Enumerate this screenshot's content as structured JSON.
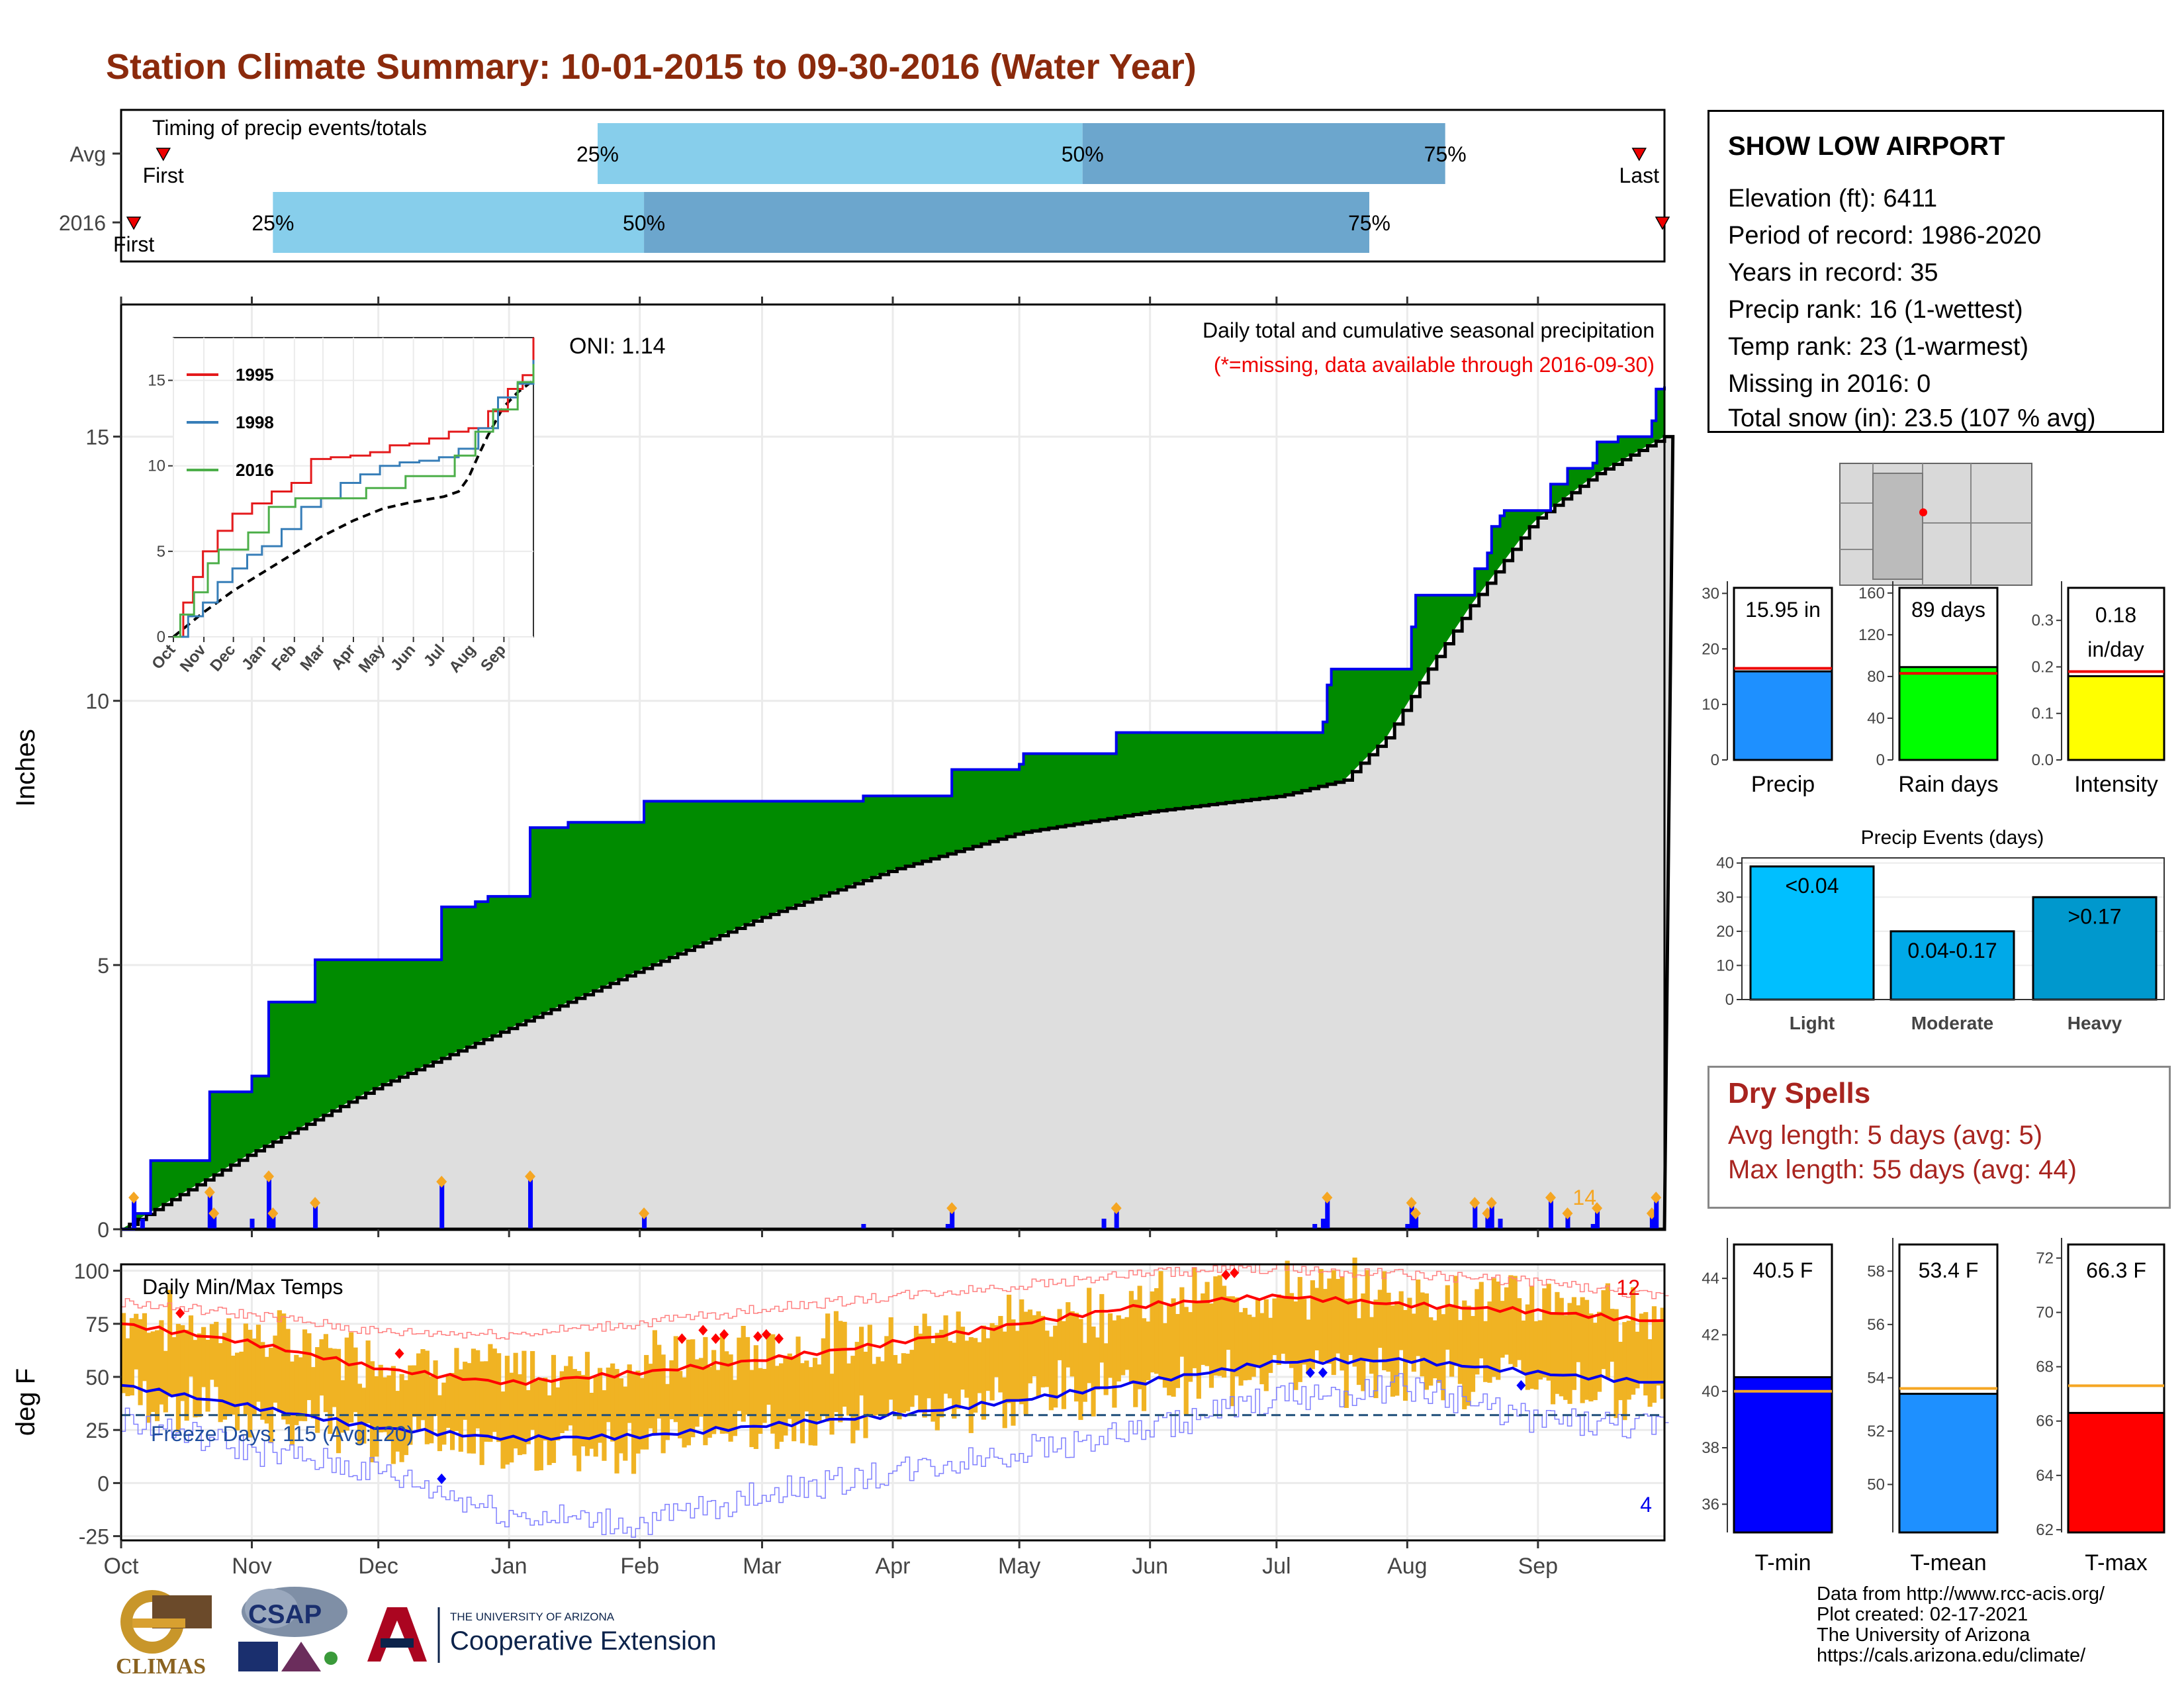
{
  "title": "Station Climate Summary: 10-01-2015 to 09-30-2016 (Water Year)",
  "station_info": {
    "name": "SHOW LOW AIRPORT",
    "lines": [
      "Elevation (ft): 6411",
      "Period of record: 1986-2020",
      "Years in record: 35",
      "Precip rank: 16 (1-wettest)",
      "Temp rank: 23 (1-warmest)",
      "Missing in 2016: 0",
      "Total snow (in): 23.5 (107 % avg)"
    ]
  },
  "dry_spells": {
    "title": "Dry Spells",
    "avg_length": "Avg length: 5 days (avg: 5)",
    "max_length": "Max length: 55 days (avg: 44)"
  },
  "credits": [
    "Data from http://www.rcc-acis.org/",
    "Plot created: 02-17-2021",
    "The University of Arizona",
    "https://cals.arizona.edu/climate/"
  ],
  "logos": {
    "climas": "CLIMAS",
    "csap": "CSAP",
    "ua_small": "THE UNIVERSITY OF ARIZONA",
    "ua_big": "Cooperative Extension"
  },
  "colors": {
    "title": "#8b2a0c",
    "green": "#008b00",
    "blue_line": "#0000ee",
    "grey_fill": "#dedede",
    "light_blue": "#87ceeb",
    "mid_blue": "#6ca6cd",
    "orange": "#f5a623",
    "red": "#ff0000"
  },
  "chart_data": [
    {
      "id": "timing",
      "type": "bar",
      "title": "Timing of precip events/totals",
      "rows": [
        {
          "label": "Avg",
          "first": "First",
          "last": "Last",
          "p25": "25%",
          "p50": "50%",
          "p75": "75%",
          "first_day": 10,
          "last_day": 360,
          "p25_day": 113,
          "p50_day": 228,
          "p75_day": 314
        },
        {
          "label": "2016",
          "first": "First",
          "last": "Last",
          "p25": "25%",
          "p50": "50%",
          "p75": "75%",
          "first_day": 3,
          "last_day": 367,
          "p25_day": 36,
          "p50_day": 124,
          "p75_day": 296
        }
      ]
    },
    {
      "id": "cumulative",
      "type": "area",
      "ylabel": "Inches",
      "yticks": [
        0,
        5,
        10,
        15
      ],
      "ylim": [
        0,
        17.5
      ],
      "annotation_title": "Daily total and cumulative seasonal precipitation",
      "annotation_missing": "(*=missing, data available through 2016-09-30)",
      "oni": "ONI: 1.14",
      "count_label": "14",
      "observed_steps": [
        [
          0,
          0
        ],
        [
          3,
          0.3
        ],
        [
          7,
          1.3
        ],
        [
          20,
          1.3
        ],
        [
          21,
          2.6
        ],
        [
          30,
          2.6
        ],
        [
          31,
          2.9
        ],
        [
          34,
          2.9
        ],
        [
          35,
          4.3
        ],
        [
          40,
          4.3
        ],
        [
          46,
          5.1
        ],
        [
          75,
          5.1
        ],
        [
          76,
          6.1
        ],
        [
          84,
          6.2
        ],
        [
          87,
          6.3
        ],
        [
          96,
          6.3
        ],
        [
          97,
          7.6
        ],
        [
          106,
          7.7
        ],
        [
          120,
          7.7
        ],
        [
          124,
          8.1
        ],
        [
          175,
          8.1
        ],
        [
          176,
          8.2
        ],
        [
          196,
          8.2
        ],
        [
          197,
          8.7
        ],
        [
          213,
          8.8
        ],
        [
          214,
          9.0
        ],
        [
          235,
          9.0
        ],
        [
          236,
          9.4
        ],
        [
          283,
          9.4
        ],
        [
          285,
          9.6
        ],
        [
          286,
          10.3
        ],
        [
          287,
          10.6
        ],
        [
          305,
          10.6
        ],
        [
          306,
          11.4
        ],
        [
          307,
          12.0
        ],
        [
          320,
          12.0
        ],
        [
          321,
          12.5
        ],
        [
          324,
          12.8
        ],
        [
          325,
          13.3
        ],
        [
          327,
          13.5
        ],
        [
          328,
          13.6
        ],
        [
          338,
          13.6
        ],
        [
          339,
          14.1
        ],
        [
          342,
          14.1
        ],
        [
          343,
          14.4
        ],
        [
          349,
          14.5
        ],
        [
          350,
          14.9
        ],
        [
          355,
          15.0
        ],
        [
          361,
          15.0
        ],
        [
          362,
          15.0
        ],
        [
          363,
          15.3
        ],
        [
          364,
          15.9
        ],
        [
          366,
          15.95
        ]
      ],
      "average_curve": [
        [
          0,
          0
        ],
        [
          30,
          1.4
        ],
        [
          61,
          2.7
        ],
        [
          92,
          3.8
        ],
        [
          123,
          4.9
        ],
        [
          152,
          5.9
        ],
        [
          183,
          6.8
        ],
        [
          213,
          7.5
        ],
        [
          244,
          7.9
        ],
        [
          275,
          8.2
        ],
        [
          290,
          8.5
        ],
        [
          300,
          9.3
        ],
        [
          310,
          10.6
        ],
        [
          320,
          11.8
        ],
        [
          335,
          13.4
        ],
        [
          350,
          14.3
        ],
        [
          366,
          15.0
        ]
      ],
      "daily_bars": [
        [
          3,
          0.6
        ],
        [
          5,
          0.2
        ],
        [
          21,
          0.7
        ],
        [
          22,
          0.3
        ],
        [
          31,
          0.2
        ],
        [
          35,
          1.0
        ],
        [
          36,
          0.3
        ],
        [
          46,
          0.5
        ],
        [
          76,
          0.9
        ],
        [
          97,
          1.0
        ],
        [
          124,
          0.3
        ],
        [
          176,
          0.1
        ],
        [
          196,
          0.1
        ],
        [
          197,
          0.4
        ],
        [
          233,
          0.2
        ],
        [
          236,
          0.4
        ],
        [
          283,
          0.1
        ],
        [
          285,
          0.2
        ],
        [
          286,
          0.6
        ],
        [
          305,
          0.1
        ],
        [
          306,
          0.5
        ],
        [
          307,
          0.3
        ],
        [
          321,
          0.5
        ],
        [
          324,
          0.3
        ],
        [
          325,
          0.5
        ],
        [
          327,
          0.2
        ],
        [
          339,
          0.6
        ],
        [
          343,
          0.3
        ],
        [
          349,
          0.1
        ],
        [
          350,
          0.4
        ],
        [
          363,
          0.3
        ],
        [
          364,
          0.6
        ]
      ],
      "x_ticks": [
        "Oct",
        "Nov",
        "Dec",
        "Jan",
        "Feb",
        "Mar",
        "Apr",
        "May",
        "Jun",
        "Jul",
        "Aug",
        "Sep"
      ]
    },
    {
      "id": "inset",
      "type": "line",
      "yticks": [
        0,
        5,
        10,
        15
      ],
      "x_ticks": [
        "Oct",
        "Nov",
        "Dec",
        "Jan",
        "Feb",
        "Mar",
        "Apr",
        "May",
        "Jun",
        "Jul",
        "Aug",
        "Sep"
      ],
      "series": [
        {
          "name": "1995",
          "color": "#e41a1c",
          "values": [
            [
              0,
              0
            ],
            [
              10,
              2
            ],
            [
              20,
              3.5
            ],
            [
              30,
              5
            ],
            [
              45,
              6.2
            ],
            [
              60,
              7.2
            ],
            [
              80,
              7.8
            ],
            [
              100,
              8.5
            ],
            [
              120,
              9.0
            ],
            [
              140,
              10.4
            ],
            [
              160,
              10.5
            ],
            [
              180,
              10.6
            ],
            [
              200,
              10.8
            ],
            [
              220,
              11.2
            ],
            [
              240,
              11.3
            ],
            [
              260,
              11.6
            ],
            [
              280,
              12.0
            ],
            [
              300,
              12.2
            ],
            [
              320,
              13.2
            ],
            [
              340,
              14.5
            ],
            [
              355,
              15.3
            ],
            [
              366,
              17.5
            ]
          ]
        },
        {
          "name": "1998",
          "color": "#377eb8",
          "values": [
            [
              0,
              0
            ],
            [
              15,
              1.2
            ],
            [
              30,
              2.0
            ],
            [
              45,
              3.2
            ],
            [
              60,
              4.0
            ],
            [
              75,
              4.8
            ],
            [
              90,
              5.3
            ],
            [
              110,
              6.3
            ],
            [
              130,
              7.6
            ],
            [
              150,
              8.1
            ],
            [
              170,
              9.0
            ],
            [
              190,
              9.5
            ],
            [
              210,
              10.0
            ],
            [
              230,
              10.2
            ],
            [
              250,
              10.3
            ],
            [
              270,
              10.5
            ],
            [
              290,
              11.0
            ],
            [
              310,
              12.2
            ],
            [
              330,
              14.0
            ],
            [
              350,
              14.8
            ],
            [
              366,
              16.2
            ]
          ]
        },
        {
          "name": "2016",
          "color": "#4daf4a",
          "values": [
            [
              0,
              0
            ],
            [
              7,
              1.3
            ],
            [
              21,
              2.6
            ],
            [
              35,
              4.3
            ],
            [
              46,
              5.1
            ],
            [
              76,
              6.1
            ],
            [
              97,
              7.6
            ],
            [
              124,
              8.1
            ],
            [
              196,
              8.7
            ],
            [
              236,
              9.4
            ],
            [
              286,
              10.6
            ],
            [
              307,
              12.0
            ],
            [
              325,
              13.3
            ],
            [
              350,
              14.9
            ],
            [
              366,
              15.95
            ]
          ]
        }
      ],
      "average": [
        [
          0,
          0
        ],
        [
          30,
          1.4
        ],
        [
          61,
          2.7
        ],
        [
          92,
          3.8
        ],
        [
          123,
          4.9
        ],
        [
          152,
          5.9
        ],
        [
          183,
          6.8
        ],
        [
          213,
          7.5
        ],
        [
          244,
          7.9
        ],
        [
          275,
          8.2
        ],
        [
          290,
          8.5
        ],
        [
          300,
          9.3
        ],
        [
          310,
          10.6
        ],
        [
          320,
          11.8
        ],
        [
          335,
          13.4
        ],
        [
          350,
          14.3
        ],
        [
          366,
          15.0
        ]
      ]
    },
    {
      "id": "temps",
      "type": "line",
      "title": "Daily Min/Max Temps",
      "ylabel": "deg F",
      "yticks": [
        -25,
        0,
        25,
        50,
        75,
        100
      ],
      "ylim": [
        -27,
        103
      ],
      "freeze_label": "Freeze Days: 115 (Avg:120)",
      "freeze_line": 32,
      "record_high_count": "12",
      "record_low_count": "4",
      "x_ticks": [
        "Oct",
        "Nov",
        "Dec",
        "Jan",
        "Feb",
        "Mar",
        "Apr",
        "May",
        "Jun",
        "Jul",
        "Aug",
        "Sep"
      ],
      "avg_max": [
        [
          0,
          75
        ],
        [
          31,
          66
        ],
        [
          61,
          54
        ],
        [
          92,
          47
        ],
        [
          123,
          52
        ],
        [
          152,
          58
        ],
        [
          183,
          66
        ],
        [
          213,
          75
        ],
        [
          244,
          84
        ],
        [
          274,
          88
        ],
        [
          305,
          84
        ],
        [
          335,
          81
        ],
        [
          366,
          76
        ]
      ],
      "avg_min": [
        [
          0,
          46
        ],
        [
          31,
          36
        ],
        [
          61,
          26
        ],
        [
          92,
          21
        ],
        [
          123,
          22
        ],
        [
          152,
          27
        ],
        [
          183,
          32
        ],
        [
          213,
          39
        ],
        [
          244,
          48
        ],
        [
          274,
          57
        ],
        [
          305,
          58
        ],
        [
          335,
          52
        ],
        [
          366,
          47
        ]
      ],
      "record_max": [
        [
          0,
          85
        ],
        [
          31,
          79
        ],
        [
          61,
          71
        ],
        [
          92,
          70
        ],
        [
          123,
          75
        ],
        [
          152,
          82
        ],
        [
          183,
          88
        ],
        [
          213,
          93
        ],
        [
          244,
          99
        ],
        [
          274,
          101
        ],
        [
          305,
          98
        ],
        [
          335,
          95
        ],
        [
          366,
          87
        ]
      ],
      "record_min": [
        [
          0,
          30
        ],
        [
          31,
          15
        ],
        [
          61,
          5
        ],
        [
          92,
          -15
        ],
        [
          123,
          -20
        ],
        [
          152,
          -5
        ],
        [
          183,
          5
        ],
        [
          213,
          15
        ],
        [
          244,
          25
        ],
        [
          274,
          40
        ],
        [
          305,
          45
        ],
        [
          335,
          30
        ],
        [
          366,
          25
        ]
      ],
      "daily_band_center": [
        [
          0,
          60
        ],
        [
          31,
          50
        ],
        [
          61,
          40
        ],
        [
          92,
          33
        ],
        [
          123,
          38
        ],
        [
          152,
          44
        ],
        [
          183,
          50
        ],
        [
          213,
          58
        ],
        [
          244,
          66
        ],
        [
          274,
          72
        ],
        [
          305,
          70
        ],
        [
          335,
          67
        ],
        [
          366,
          60
        ]
      ]
    },
    {
      "id": "summary_bars",
      "type": "bar",
      "panels": [
        {
          "label": "Precip",
          "value_label": "15.95 in",
          "value": 15.95,
          "avg": 16.5,
          "yticks": [
            0,
            10,
            20,
            30
          ],
          "ylim": [
            0,
            31
          ],
          "color": "#1e90ff"
        },
        {
          "label": "Rain days",
          "value_label": "89 days",
          "value": 89,
          "avg": 83,
          "yticks": [
            0,
            40,
            80,
            120,
            160
          ],
          "ylim": [
            0,
            165
          ],
          "color": "#00ff00"
        },
        {
          "label": "Intensity",
          "value_label": "0.18 in/day",
          "value": 0.18,
          "avg": 0.19,
          "yticks": [
            0.0,
            0.1,
            0.2,
            0.3
          ],
          "ylim": [
            0,
            0.37
          ],
          "color": "#ffff00"
        }
      ]
    },
    {
      "id": "precip_events",
      "type": "bar",
      "title": "Precip Events (days)",
      "categories": [
        "Light",
        "Moderate",
        "Heavy"
      ],
      "bar_labels": [
        "<0.04",
        "0.04-0.17",
        ">0.17"
      ],
      "values": [
        39,
        20,
        30
      ],
      "yticks": [
        0,
        10,
        20,
        30,
        40
      ],
      "colors": [
        "#00bfff",
        "#00a9e8",
        "#0098cd"
      ]
    },
    {
      "id": "temp_bars",
      "type": "bar",
      "panels": [
        {
          "label": "T-min",
          "value_label": "40.5 F",
          "value": 40.5,
          "avg": 40.0,
          "yticks": [
            36,
            38,
            40,
            42,
            44
          ],
          "ylim": [
            35,
            45.2
          ],
          "color": "#0000ff"
        },
        {
          "label": "T-mean",
          "value_label": "53.4 F",
          "value": 53.4,
          "avg": 53.6,
          "yticks": [
            50,
            52,
            54,
            56,
            58
          ],
          "ylim": [
            48.2,
            59
          ],
          "color": "#1e90ff"
        },
        {
          "label": "T-max",
          "value_label": "66.3 F",
          "value": 66.3,
          "avg": 67.3,
          "yticks": [
            62,
            64,
            66,
            68,
            70,
            72
          ],
          "ylim": [
            61.9,
            72.5
          ],
          "color": "#ff0000"
        }
      ]
    }
  ]
}
